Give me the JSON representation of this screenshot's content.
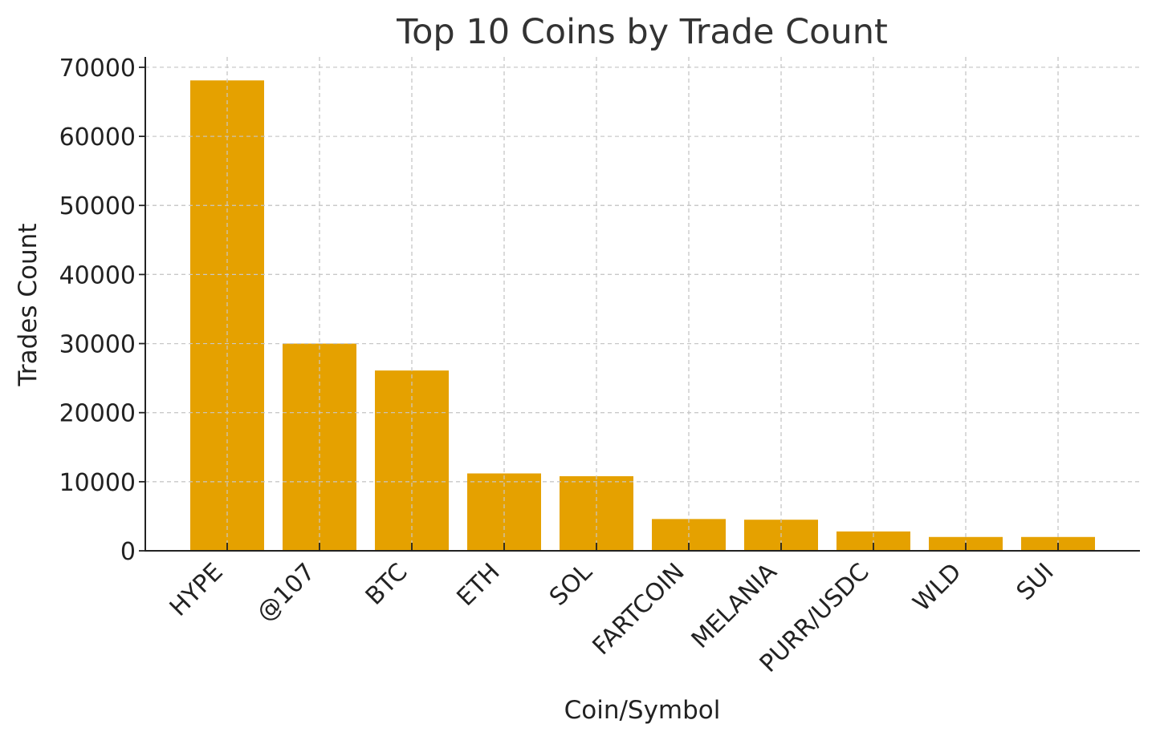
{
  "chart_data": {
    "type": "bar",
    "title": "Top 10 Coins by Trade Count",
    "xlabel": "Coin/Symbol",
    "ylabel": "Trades Count",
    "categories": [
      "HYPE",
      "@107",
      "BTC",
      "ETH",
      "SOL",
      "FARTCOIN",
      "MELANIA",
      "PURR/USDC",
      "WLD",
      "SUI"
    ],
    "values": [
      68100,
      30000,
      26100,
      11200,
      10800,
      4600,
      4500,
      2800,
      2000,
      2000
    ],
    "yticks": [
      0,
      10000,
      20000,
      30000,
      40000,
      50000,
      60000,
      70000
    ],
    "ylim": [
      0,
      71500
    ],
    "grid": true,
    "bar_color": "#e5a100"
  }
}
